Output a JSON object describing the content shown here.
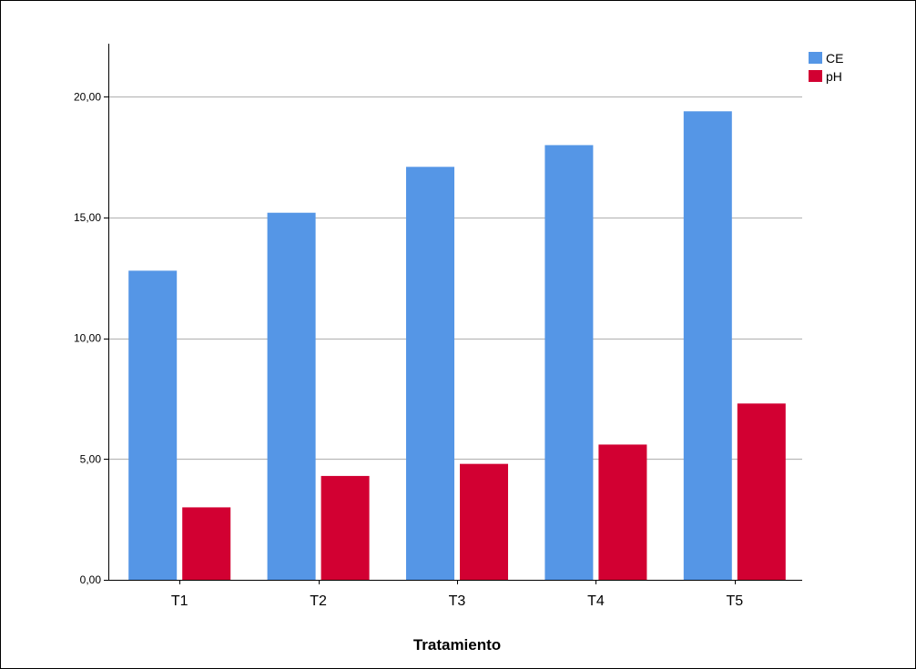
{
  "chart_data": {
    "type": "bar",
    "title": "",
    "xlabel": "Tratamiento",
    "ylabel": "",
    "categories": [
      "T1",
      "T2",
      "T3",
      "T4",
      "T5"
    ],
    "series": [
      {
        "name": "CE",
        "values": [
          12.8,
          15.2,
          17.1,
          18.0,
          19.4
        ],
        "color": "#5596e6"
      },
      {
        "name": "pH",
        "values": [
          3.0,
          4.3,
          4.8,
          5.6,
          7.3
        ],
        "color": "#d20032"
      }
    ],
    "ylim": [
      0,
      22.2
    ],
    "yticks": [
      0,
      5,
      10,
      15,
      20
    ],
    "ytick_labels": [
      "0,00",
      "5,00",
      "10,00",
      "15,00",
      "20,00"
    ],
    "grid": true,
    "legend_position": "top-right"
  }
}
